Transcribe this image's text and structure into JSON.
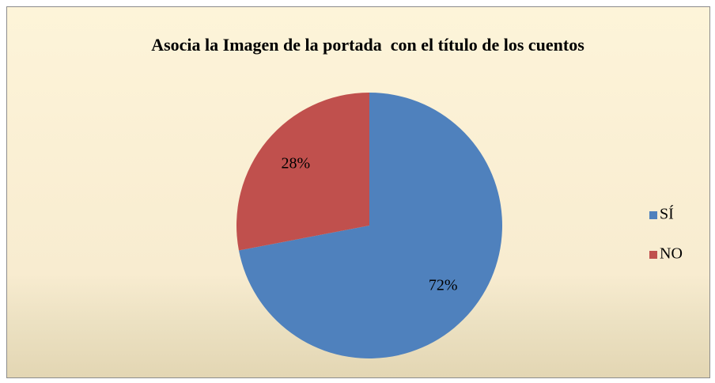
{
  "chart_data": {
    "type": "pie",
    "title": "Asocia la Imagen de la portada  con el título de los cuentos",
    "categories": [
      "SÍ",
      "NO"
    ],
    "values": [
      72,
      28
    ],
    "value_labels": [
      "72%",
      "28%"
    ],
    "colors": [
      "#4f81bd",
      "#c0504d"
    ],
    "legend": "right"
  }
}
